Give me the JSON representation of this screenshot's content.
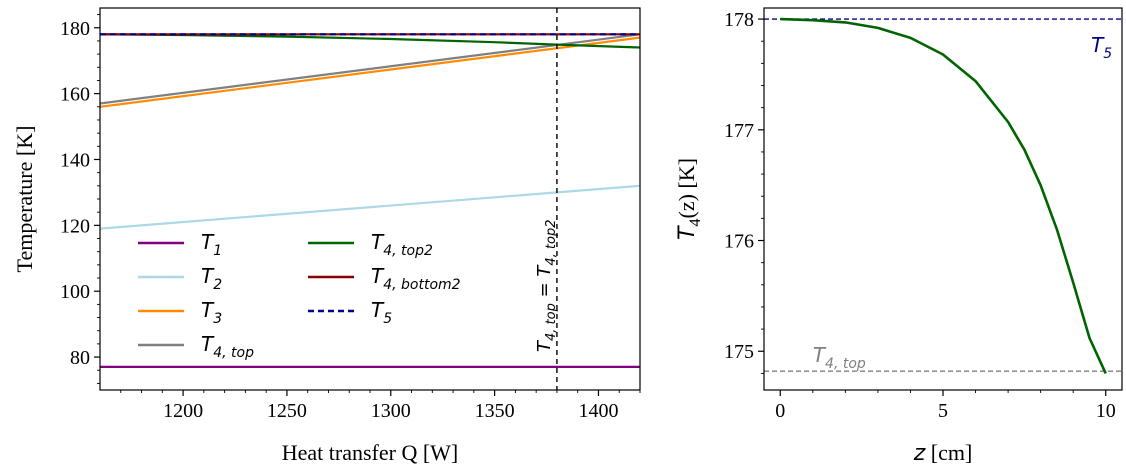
{
  "chart_data": [
    {
      "type": "line",
      "xlabel": "Heat transfer Q [W]",
      "ylabel": "Temperature [K]",
      "xlim": [
        1160,
        1420
      ],
      "ylim": [
        70,
        186
      ],
      "xticks": [
        1200,
        1250,
        1300,
        1350,
        1400
      ],
      "yticks": [
        80,
        100,
        120,
        140,
        160,
        180
      ],
      "grid": false,
      "legend_position": "lower-left",
      "series": [
        {
          "name": "T1",
          "name_base": "T",
          "name_sub": "1",
          "color": "#800080",
          "dash": "solid",
          "x": [
            1160,
            1420
          ],
          "y": [
            77,
            77
          ]
        },
        {
          "name": "T2",
          "name_base": "T",
          "name_sub": "2",
          "color": "#add8e6",
          "dash": "solid",
          "x": [
            1160,
            1420
          ],
          "y": [
            119,
            132
          ]
        },
        {
          "name": "T3",
          "name_base": "T",
          "name_sub": "3",
          "color": "#ff8c00",
          "dash": "solid",
          "x": [
            1160,
            1420
          ],
          "y": [
            156,
            177
          ]
        },
        {
          "name": "T4,top",
          "name_base": "T",
          "name_sub": "4, top",
          "color": "#808080",
          "dash": "solid",
          "x": [
            1160,
            1420
          ],
          "y": [
            157,
            178
          ]
        },
        {
          "name": "T4,top2",
          "name_base": "T",
          "name_sub": "4, top2",
          "color": "#006400",
          "dash": "solid",
          "x": [
            1160,
            1200,
            1250,
            1300,
            1350,
            1380,
            1420
          ],
          "y": [
            178,
            177.8,
            177.3,
            176.6,
            175.6,
            174.9,
            174
          ]
        },
        {
          "name": "T4,bottom2",
          "name_base": "T",
          "name_sub": "4, bottom2",
          "color": "#8b0000",
          "dash": "solid",
          "x": [
            1160,
            1420
          ],
          "y": [
            178,
            178
          ]
        },
        {
          "name": "T5",
          "name_base": "T",
          "name_sub": "5",
          "color": "#00008b",
          "dash": "dashed",
          "x": [
            1160,
            1420
          ],
          "y": [
            178,
            178
          ]
        }
      ],
      "vline": {
        "x": 1380,
        "label": "T4,top = T4,top2",
        "label_base": "T",
        "label_sub1": "4, top",
        "label_eq": " = ",
        "label_sub2": "4, top2"
      }
    },
    {
      "type": "line",
      "xlabel_var": "z",
      "xlabel_unit": " [cm]",
      "ylabel_var": "T",
      "ylabel_sub": "4",
      "ylabel_rest": "(z) [K]",
      "xlim": [
        -0.5,
        10.5
      ],
      "ylim": [
        174.65,
        178.1
      ],
      "xticks": [
        0,
        5,
        10
      ],
      "yticks": [
        175,
        176,
        177,
        178
      ],
      "grid": false,
      "series": [
        {
          "name": "T4(z)",
          "color": "#006400",
          "dash": "solid",
          "x": [
            0,
            1,
            2,
            3,
            4,
            5,
            6,
            7,
            7.5,
            8,
            8.5,
            9,
            9.5,
            10
          ],
          "y": [
            178.0,
            177.99,
            177.97,
            177.92,
            177.83,
            177.68,
            177.44,
            177.07,
            176.82,
            176.5,
            176.1,
            175.62,
            175.12,
            174.8
          ]
        }
      ],
      "hlines": [
        {
          "y": 178.0,
          "color": "#00008b",
          "label": "T5",
          "label_base": "T",
          "label_sub": "5",
          "label_x": 9.55
        },
        {
          "y": 174.82,
          "color": "#808080",
          "label": "T4,top",
          "label_base": "T",
          "label_sub": "4, top",
          "label_x": 1.0
        }
      ]
    }
  ]
}
